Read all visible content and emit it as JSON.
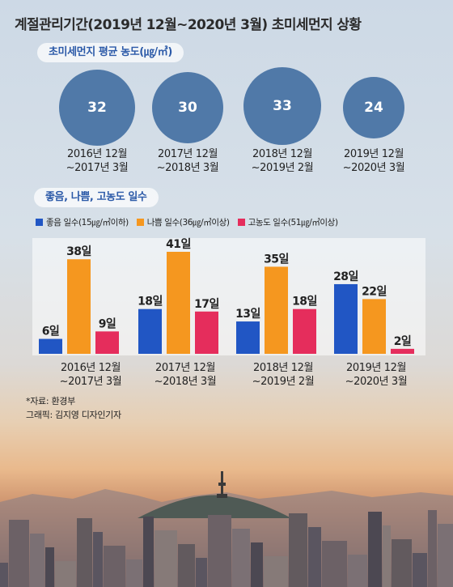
{
  "title": "계절관리기간(2019년 12월~2020년 3월) 초미세먼지 상황",
  "section1_title": "초미세먼지 평균 농도(㎍/㎥)",
  "section2_title": "좋음, 나쁨, 고농도 일수",
  "bubbles": [
    {
      "value": "32",
      "label_line1": "2016년 12월",
      "label_line2": "~2017년 3월"
    },
    {
      "value": "30",
      "label_line1": "2017년 12월",
      "label_line2": "~2018년 3월"
    },
    {
      "value": "33",
      "label_line1": "2018년 12월",
      "label_line2": "~2019년 2월"
    },
    {
      "value": "24",
      "label_line1": "2019년 12월",
      "label_line2": "~2020년 3월"
    }
  ],
  "legend": [
    {
      "label": "좋음 일수(15㎍/㎥이하)",
      "color": "#2156c4"
    },
    {
      "label": "나쁨 일수(36㎍/㎥이상)",
      "color": "#f5971f"
    },
    {
      "label": "고농도 일수(51㎍/㎥이상)",
      "color": "#e52d5c"
    }
  ],
  "chart_data": {
    "type": "bar",
    "categories": [
      {
        "line1": "2016년 12월",
        "line2": "~2017년 3월"
      },
      {
        "line1": "2017년 12월",
        "line2": "~2018년 3월"
      },
      {
        "line1": "2018년 12월",
        "line2": "~2019년 2월"
      },
      {
        "line1": "2019년 12월",
        "line2": "~2020년 3월"
      }
    ],
    "series": [
      {
        "name": "좋음 일수(15㎍/㎥이하)",
        "color": "#2156c4",
        "values": [
          6,
          18,
          13,
          28
        ],
        "labels": [
          "6일",
          "18일",
          "13일",
          "28일"
        ]
      },
      {
        "name": "나쁨 일수(36㎍/㎥이상)",
        "color": "#f5971f",
        "values": [
          38,
          41,
          35,
          22
        ],
        "labels": [
          "38일",
          "41일",
          "35일",
          "22일"
        ]
      },
      {
        "name": "고농도 일수(51㎍/㎥이상)",
        "color": "#e52d5c",
        "values": [
          9,
          17,
          18,
          2
        ],
        "labels": [
          "9일",
          "17일",
          "18일",
          "2일"
        ]
      }
    ],
    "concentration": [
      32,
      30,
      33,
      24
    ],
    "ylim": [
      0,
      41
    ],
    "grid": false,
    "legend_position": "top-left"
  },
  "notes": {
    "source": "*자료: 환경부",
    "graphic": "그래픽: 김지영 디자인기자"
  }
}
